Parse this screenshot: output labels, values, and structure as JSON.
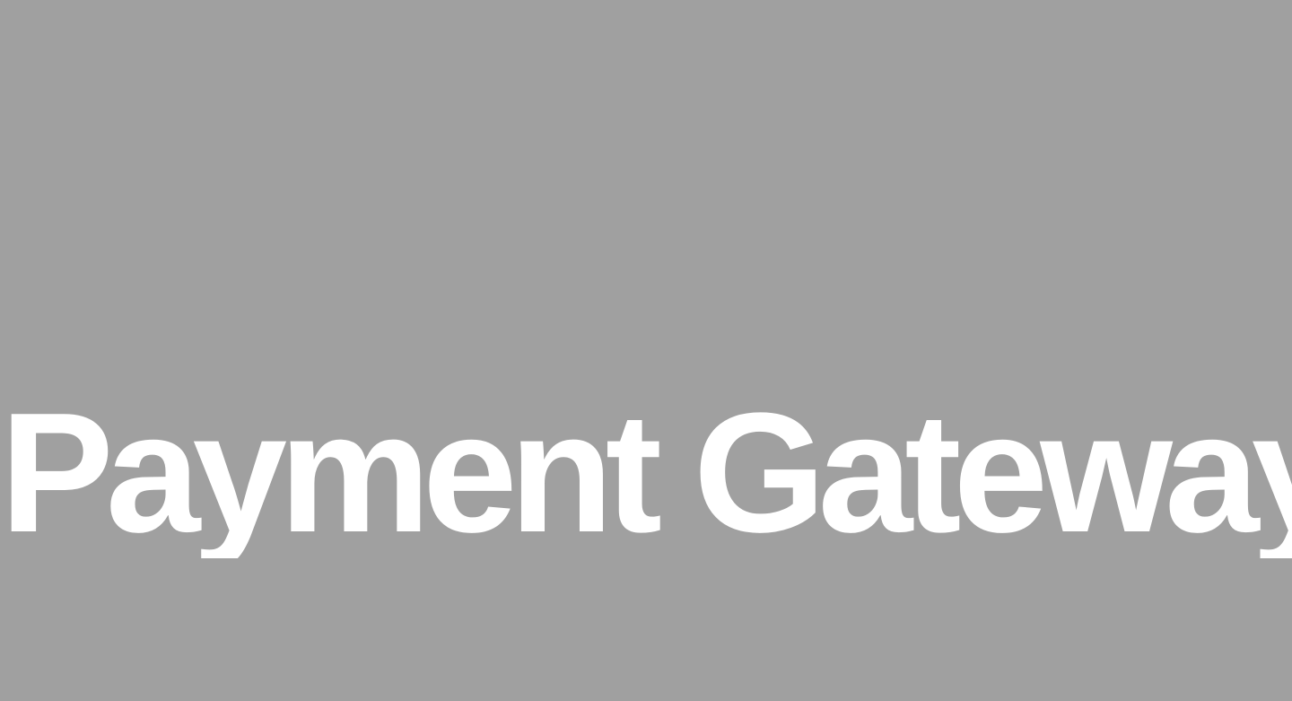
{
  "hero": {
    "title": "Payment Gateway"
  },
  "colors": {
    "background": "#a0a0a0",
    "text": "#ffffff"
  }
}
